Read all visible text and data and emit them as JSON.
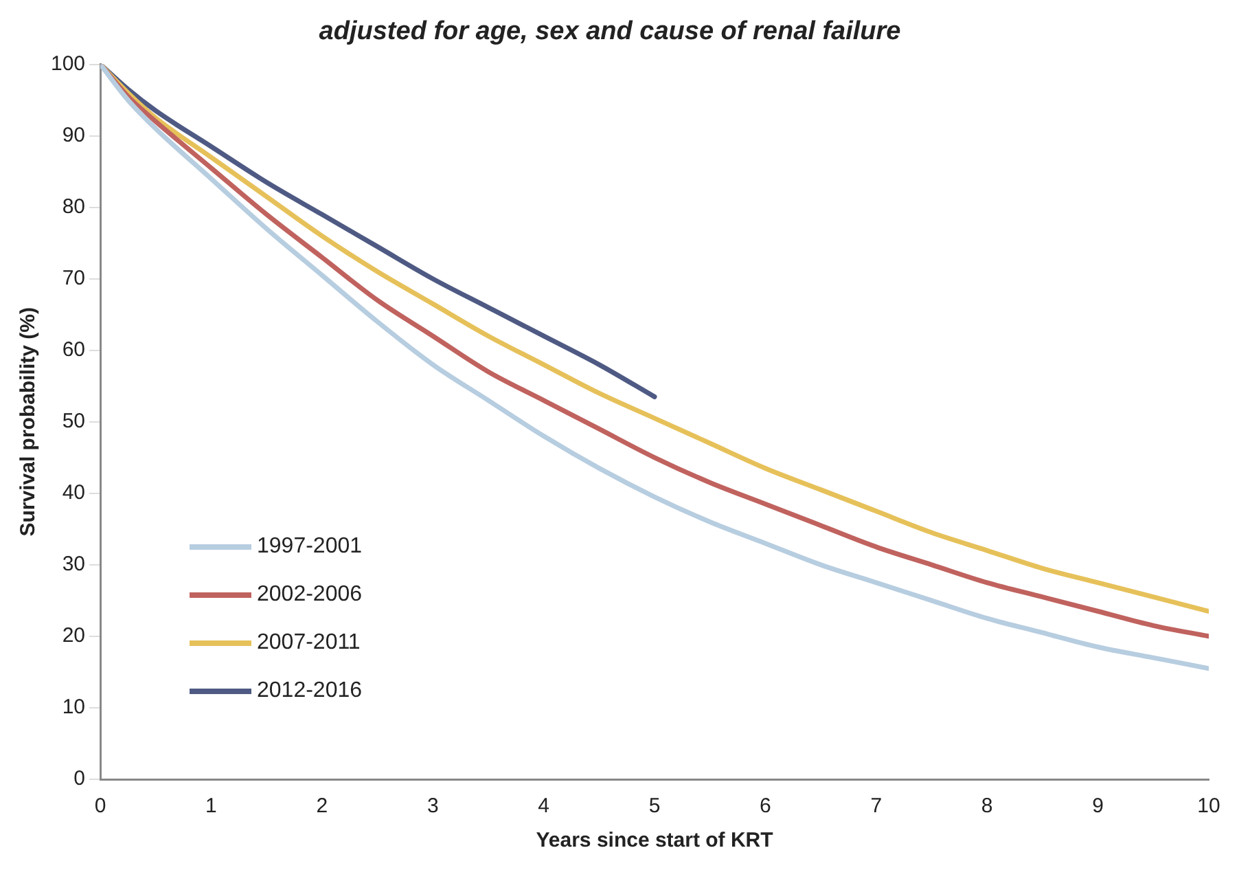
{
  "chart_data": {
    "type": "line",
    "title": "adjusted for age, sex and cause of renal failure",
    "xlabel": "Years since start of KRT",
    "ylabel": "Survival probability (%)",
    "x": [
      0,
      0.25,
      0.5,
      1,
      1.5,
      2,
      2.5,
      3,
      3.5,
      4,
      4.5,
      5,
      5.5,
      6,
      6.5,
      7,
      7.5,
      8,
      8.5,
      9,
      9.5,
      10
    ],
    "series": [
      {
        "name": "1997-2001",
        "color": "#b7cde0",
        "values": [
          100,
          95,
          91,
          84,
          77,
          70.5,
          64,
          58,
          53,
          48,
          43.5,
          39.5,
          36,
          33,
          30,
          27.5,
          25,
          22.5,
          20.5,
          18.5,
          17,
          15.5
        ]
      },
      {
        "name": "2002-2006",
        "color": "#c0625e",
        "values": [
          100,
          95.5,
          92,
          85.5,
          79,
          73,
          67,
          62,
          57,
          53,
          49,
          45,
          41.5,
          38.5,
          35.5,
          32.5,
          30,
          27.5,
          25.5,
          23.5,
          21.5,
          20
        ]
      },
      {
        "name": "2007-2011",
        "color": "#e6c15a",
        "values": [
          100,
          96,
          92.5,
          87,
          81.5,
          76,
          71,
          66.5,
          62,
          58,
          54,
          50.5,
          47,
          43.5,
          40.5,
          37.5,
          34.5,
          32,
          29.5,
          27.5,
          25.5,
          23.5
        ]
      },
      {
        "name": "2012-2016",
        "color": "#4e5a83",
        "x": [
          0,
          0.25,
          0.5,
          1,
          1.5,
          2,
          2.5,
          3,
          3.5,
          4,
          4.5,
          5
        ],
        "values": [
          100,
          96.5,
          93.5,
          88.5,
          83.5,
          79,
          74.5,
          70,
          66,
          62,
          58,
          53.5
        ]
      }
    ],
    "xlim": [
      0,
      10
    ],
    "xticks": [
      0,
      1,
      2,
      3,
      4,
      5,
      6,
      7,
      8,
      9,
      10
    ],
    "ylim": [
      0,
      100
    ],
    "yticks": [
      0,
      10,
      20,
      30,
      40,
      50,
      60,
      70,
      80,
      90,
      100
    ],
    "grid": false,
    "legend": "bottom left",
    "marker": "none",
    "line_style": "solid"
  }
}
